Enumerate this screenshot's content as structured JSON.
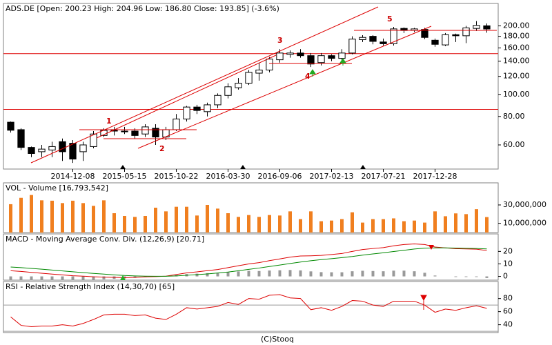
{
  "chart_data": [
    {
      "type": "candlestick",
      "title": "ADS.DE [Open: 200.23 High: 204.96 Low: 186.80 Close: 193.85] (-3.6%)",
      "categories": [
        null,
        null,
        null,
        null,
        null,
        null,
        "2014-12-08",
        null,
        null,
        null,
        null,
        "2015-05-15",
        null,
        null,
        null,
        null,
        "2015-10-22",
        null,
        null,
        null,
        null,
        "2016-03-30",
        null,
        null,
        null,
        null,
        "2016-09-06",
        null,
        null,
        null,
        null,
        "2017-02-13",
        null,
        null,
        null,
        null,
        "2017-07-21",
        null,
        null,
        null,
        null,
        "2017-12-28",
        null,
        null,
        null,
        null,
        null
      ],
      "open": [
        75.5,
        70,
        58.5,
        56,
        57,
        62,
        61,
        56,
        59,
        66,
        70,
        69,
        69,
        67,
        71,
        65,
        70,
        78,
        88,
        84,
        90,
        99,
        107,
        112,
        124,
        128,
        142,
        150,
        152,
        148,
        138,
        148,
        144,
        152,
        174,
        180,
        170,
        167,
        195,
        191,
        193,
        173,
        165,
        183,
        181,
        195,
        200.23
      ],
      "high": [
        76,
        71,
        59,
        60,
        62,
        64,
        63,
        62,
        69,
        71,
        72,
        72,
        71,
        74,
        74,
        72,
        82,
        89,
        90,
        92,
        101,
        112,
        118,
        128,
        138,
        146,
        158,
        156,
        158,
        152,
        152,
        150,
        158,
        180,
        182,
        182,
        176,
        198,
        197,
        196,
        196,
        176,
        186,
        185,
        200,
        210,
        204.96
      ],
      "low": [
        68,
        57,
        53,
        53,
        53,
        51,
        50,
        51,
        58,
        65,
        66,
        67,
        64,
        65,
        60,
        63,
        69,
        76,
        82,
        80,
        87,
        96,
        105,
        110,
        115,
        125,
        138,
        145,
        145,
        132,
        134,
        140,
        142,
        150,
        170,
        166,
        164,
        164,
        186,
        188,
        175,
        162,
        163,
        170,
        168,
        190,
        186.8
      ],
      "close": [
        69.6,
        58.5,
        55,
        57.5,
        59,
        56,
        52,
        60,
        67,
        69.5,
        69,
        68.5,
        66,
        72,
        65,
        70,
        78,
        88,
        85,
        90,
        99,
        108,
        112,
        125,
        128,
        143,
        152,
        152,
        148,
        136,
        148,
        144,
        152,
        175,
        178,
        171,
        167,
        194,
        191,
        194,
        178,
        166,
        183,
        181,
        196,
        201,
        193.85
      ],
      "up_color": "#ffffff",
      "down_color": "#000000",
      "color": "#000000",
      "ylim": [
        47,
        251
      ],
      "log": true,
      "yticks": [
        {
          "value": 60,
          "label": "60.00"
        },
        {
          "value": 80,
          "label": "80.00"
        },
        {
          "value": 100,
          "label": "100.00"
        },
        {
          "value": 120,
          "label": "120.00"
        },
        {
          "value": 140,
          "label": "140.00"
        },
        {
          "value": 160,
          "label": "160.00"
        },
        {
          "value": 180,
          "label": "180.00"
        },
        {
          "value": 200,
          "label": "200.00"
        }
      ],
      "hlines": [
        151,
        86
      ],
      "hline_color": "#dd0000",
      "annotations": [
        "1",
        "2",
        "3",
        "4",
        "5"
      ]
    },
    {
      "type": "bar",
      "title": "VOL - Volume [16,793,542]",
      "color": "#f07f1f",
      "values": [
        30800000,
        37700000,
        40800000,
        35000000,
        34600000,
        32000000,
        34600000,
        32000000,
        29000000,
        35000000,
        21000000,
        18000000,
        17000000,
        18000000,
        27000000,
        23000000,
        28000000,
        28000000,
        18500000,
        30000000,
        26000000,
        21000000,
        17000000,
        19000000,
        17000000,
        19000000,
        18500000,
        23000000,
        14600000,
        23000000,
        12300000,
        13000000,
        14600000,
        22000000,
        10800000,
        14600000,
        14600000,
        15400000,
        12300000,
        13000000,
        10800000,
        23000000,
        17700000,
        20800000,
        20000000,
        25400000,
        16793542
      ],
      "ylim": [
        0,
        54000000
      ],
      "yticks": [
        {
          "value": 10000000,
          "label": "10,000,000"
        },
        {
          "value": 30000000,
          "label": "30,000,000"
        }
      ]
    },
    {
      "type": "macd",
      "title": "MACD - Moving Average Conv. Div. (12,26,9) [20.71]",
      "series": [
        {
          "color": "#dd0000",
          "values": [
            4.5,
            4,
            3.2,
            2.5,
            1.8,
            1.2,
            0.5,
            0.2,
            -0.3,
            -0.6,
            -0.8,
            -1,
            -0.8,
            -0.4,
            -0.2,
            0.2,
            1.5,
            2.8,
            3.6,
            4.6,
            5.5,
            7,
            8.5,
            10,
            11,
            12.6,
            14,
            15.4,
            16.3,
            16.5,
            16.8,
            17.5,
            18.3,
            20,
            21.5,
            22.3,
            23,
            24.5,
            25.5,
            26,
            25.5,
            23.5,
            22.8,
            22.2,
            22,
            21.8,
            20.71
          ]
        },
        {
          "color": "#008800",
          "values": [
            7.5,
            7,
            6.4,
            5.8,
            5.1,
            4.4,
            3.7,
            3,
            2.4,
            1.8,
            1.2,
            0.7,
            0.4,
            0.2,
            0.1,
            0.1,
            0.4,
            0.9,
            1.4,
            2,
            2.7,
            3.5,
            4.5,
            5.6,
            6.7,
            7.9,
            9.1,
            10.3,
            11.5,
            12.5,
            13.4,
            14.2,
            15,
            15.9,
            17,
            18,
            18.9,
            19.9,
            20.9,
            21.9,
            22.6,
            22.8,
            22.8,
            22.7,
            22.5,
            22.3,
            22
          ]
        }
      ],
      "histogram": [
        -3,
        -3,
        -3.2,
        -3.3,
        -3.3,
        -3.2,
        -3.2,
        -2.8,
        -2.7,
        -2.4,
        -2,
        -1.7,
        -1.2,
        -0.6,
        -0.3,
        0.1,
        1.1,
        1.9,
        2.2,
        2.6,
        2.8,
        3.5,
        4,
        4.4,
        4.3,
        4.7,
        4.9,
        5.1,
        4.8,
        4,
        3.4,
        3.3,
        3.3,
        4.1,
        4.5,
        4.3,
        4.1,
        4.6,
        4.6,
        4.1,
        2.9,
        0.7,
        0,
        -0.5,
        -0.5,
        -0.5,
        -1.29
      ],
      "histogram_color": "#999999",
      "ylim": [
        -3,
        34
      ],
      "yticks": [
        0,
        10,
        20
      ]
    },
    {
      "type": "line",
      "title": "RSI - Relative Strength Index (14,30,70) [65]",
      "color": "#dd0000",
      "values": [
        52,
        39,
        37,
        38,
        38,
        40,
        38,
        42,
        48,
        55,
        56,
        56,
        54,
        55,
        50,
        48,
        56,
        66,
        64,
        66,
        68,
        74,
        71,
        80,
        79,
        85,
        86,
        81,
        80,
        63,
        66,
        62,
        68,
        77,
        76,
        70,
        68,
        76,
        76,
        76,
        70,
        59,
        64,
        62,
        66,
        69,
        65
      ],
      "levels": [
        30,
        70
      ],
      "level_color": "#999999",
      "ylim": [
        28,
        106
      ],
      "yticks": [
        40,
        60,
        80
      ]
    }
  ],
  "footer": "(C)Stooq"
}
